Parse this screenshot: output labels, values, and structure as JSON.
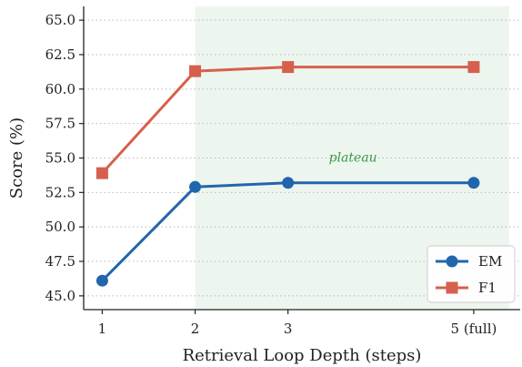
{
  "chart_data": {
    "type": "line",
    "xlabel": "Retrieval Loop Depth (steps)",
    "ylabel": "Score (%)",
    "x": [
      1,
      2,
      3,
      5
    ],
    "x_tick_labels": [
      "1",
      "2",
      "3",
      "5 (full)"
    ],
    "xlim": [
      0.8,
      5.5
    ],
    "ylim": [
      44.0,
      66.0
    ],
    "y_ticks": [
      45.0,
      47.5,
      50.0,
      52.5,
      55.0,
      57.5,
      60.0,
      62.5,
      65.0
    ],
    "y_tick_labels": [
      "45.0",
      "47.5",
      "50.0",
      "52.5",
      "55.0",
      "57.5",
      "60.0",
      "62.5",
      "65.0"
    ],
    "grid": "horizontal dotted",
    "legend_position": "lower-right",
    "series": [
      {
        "name": "EM",
        "values": [
          46.1,
          52.9,
          53.2,
          53.2
        ],
        "color": "#2166ac",
        "marker": "circle"
      },
      {
        "name": "F1",
        "values": [
          53.9,
          61.3,
          61.6,
          61.6
        ],
        "color": "#d6604d",
        "marker": "square"
      }
    ],
    "shaded_region": {
      "x_start": 2,
      "x_end": 5.38,
      "color": "#edf6ee"
    },
    "annotation": {
      "text": "plateau",
      "x": 3.7,
      "y": 55.0,
      "color": "#3a9a45"
    }
  }
}
